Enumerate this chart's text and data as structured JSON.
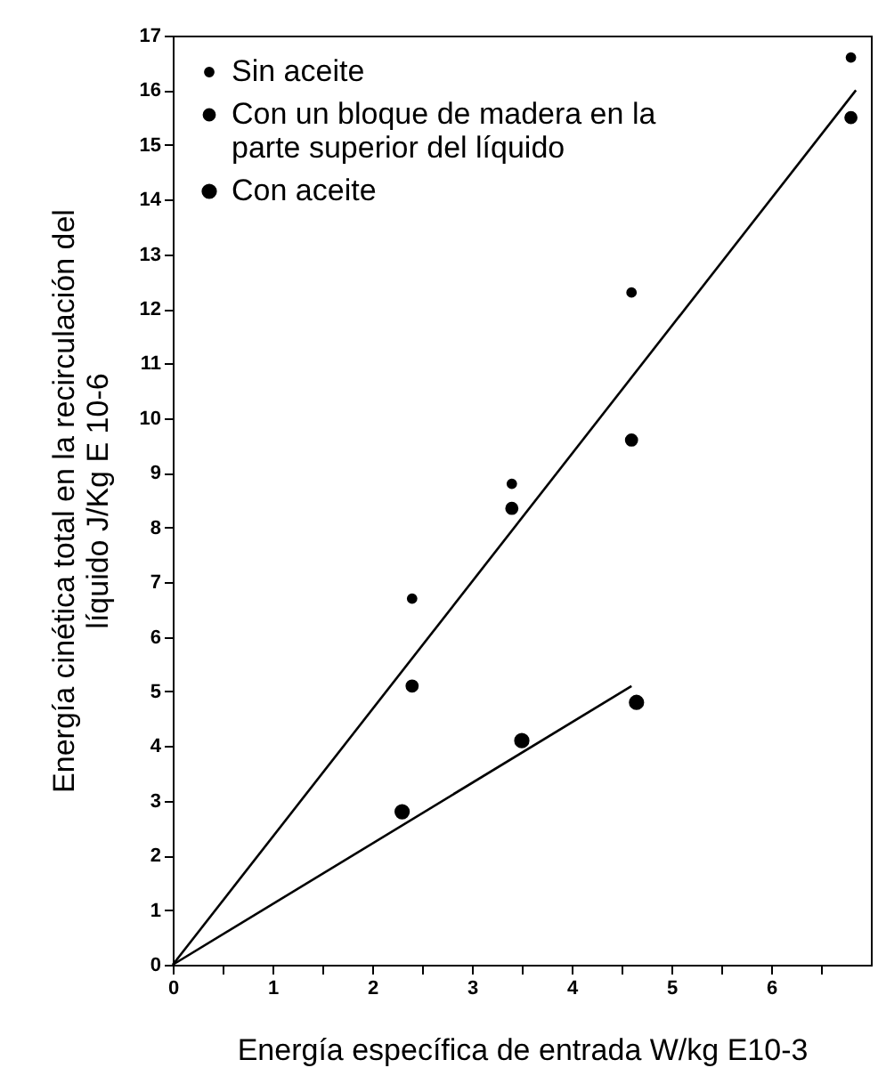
{
  "chart_data": {
    "type": "scatter",
    "xlabel": "Energía específica de entrada W/kg E10-3",
    "ylabel": "Energía cinética total en la recirculación del líquido J/Kg E 10-6",
    "xlim": [
      0,
      7
    ],
    "ylim": [
      0,
      17
    ],
    "xticks": [
      0,
      {
        "value": 0.5,
        "label": null
      },
      1,
      {
        "value": 1.5,
        "label": null
      },
      2,
      {
        "value": 2.5,
        "label": null
      },
      3,
      {
        "value": 3.5,
        "label": null
      },
      4,
      {
        "value": 4.5,
        "label": null
      },
      5,
      {
        "value": 5.5,
        "label": null
      },
      6,
      {
        "value": 6.5,
        "label": null
      }
    ],
    "yticks": [
      0,
      1,
      2,
      3,
      4,
      5,
      6,
      7,
      8,
      9,
      10,
      11,
      12,
      13,
      14,
      15,
      16,
      17
    ],
    "grid": false,
    "legend": "top left",
    "marker": "circle",
    "series": [
      {
        "name": "Sin aceite",
        "color": "#000000",
        "x": [
          2.4,
          3.4,
          4.6,
          6.8
        ],
        "values": [
          6.7,
          8.8,
          12.3,
          16.6
        ]
      },
      {
        "name": "Con un bloque de madera en la parte superior del líquido",
        "color": "#000000",
        "x": [
          2.4,
          3.4,
          4.6,
          6.8
        ],
        "values": [
          5.1,
          8.35,
          9.6,
          15.5
        ]
      },
      {
        "name": "Con aceite",
        "color": "#000000",
        "x": [
          2.3,
          3.5,
          4.65
        ],
        "values": [
          2.8,
          4.1,
          4.8
        ]
      },
      {
        "type": "line",
        "color": "#000000",
        "marker": "none",
        "line_style": "solid",
        "x": [
          0,
          6.85
        ],
        "values": [
          0,
          16.0
        ]
      },
      {
        "type": "line",
        "color": "#000000",
        "marker": "none",
        "line_style": "solid",
        "x": [
          0,
          4.6
        ],
        "values": [
          0,
          5.1
        ]
      }
    ]
  }
}
